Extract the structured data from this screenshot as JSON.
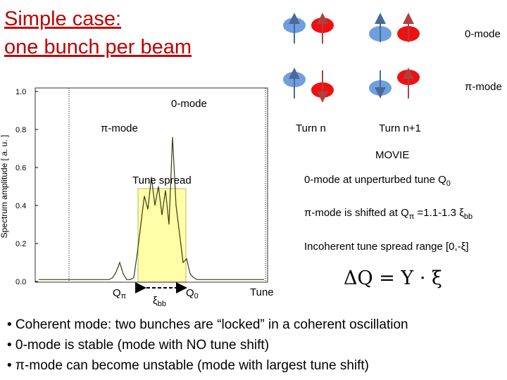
{
  "title": {
    "line1": "Simple case:",
    "line2": "one bunch per beam"
  },
  "diagram": {
    "zero_mode": "0-mode",
    "pi_mode": "π-mode",
    "turn_n": "Turn n",
    "turn_n1": "Turn n+1",
    "movie": "MOVIE"
  },
  "plot": {
    "ylabel": "Spectrum amplitude [ a. u. ]",
    "ylim": [
      0,
      1
    ],
    "yticks": [
      {
        "value": 0,
        "label": "0.0"
      },
      {
        "value": 0.2,
        "label": "0.2"
      },
      {
        "value": 0.4,
        "label": "0.4"
      },
      {
        "value": 0.6,
        "label": "0.6"
      },
      {
        "value": 0.8,
        "label": "0.8"
      },
      {
        "value": 1,
        "label": "1.0"
      }
    ],
    "spectrum": [
      0.01,
      0.01,
      0.01,
      0.01,
      0.01,
      0.01,
      0.01,
      0.01,
      0.01,
      0.01,
      0.01,
      0.01,
      0.01,
      0.01,
      0.01,
      0.01,
      0.01,
      0.01,
      0.01,
      0.01,
      0.01,
      0.02,
      0.05,
      0.1,
      0.04,
      0.01,
      0.01,
      0.02,
      0.15,
      0.3,
      0.45,
      0.38,
      0.55,
      0.4,
      0.5,
      0.35,
      0.48,
      0.3,
      0.76,
      0.4,
      0.25,
      0.1,
      0.12,
      0.04,
      0.02,
      0.01,
      0.01,
      0.01,
      0.01,
      0.01,
      0.01,
      0.01,
      0.01,
      0.01,
      0.01,
      0.01,
      0.01,
      0.01,
      0.01,
      0.01,
      0.01,
      0.01,
      0.01,
      0.01,
      0.01
    ],
    "label_zero_mode": "0-mode",
    "label_pi_mode": "π-mode",
    "tune_spread": "Tune spread",
    "q_pi": [
      "Q",
      "π"
    ],
    "xi_bb": [
      "ξ",
      "bb"
    ],
    "q_0": [
      "Q",
      "0"
    ],
    "xlabel": "Tune"
  },
  "notes": {
    "zero_mode": [
      "0-mode at unperturbed tune Q",
      "0"
    ],
    "pi_mode": [
      "π-mode is shifted at Q",
      "π",
      " =1.1-1.3 ξ",
      "bb"
    ],
    "incoherent": "Incoherent tune spread range [0,-ξ]",
    "formula": "ΔQ = Y · ξ"
  },
  "bullets": [
    "• Coherent mode: two bunches are “locked” in a coherent oscillation",
    "• 0-mode is stable (mode with NO tune shift)",
    "• π-mode can become unstable (mode with largest tune shift)"
  ]
}
